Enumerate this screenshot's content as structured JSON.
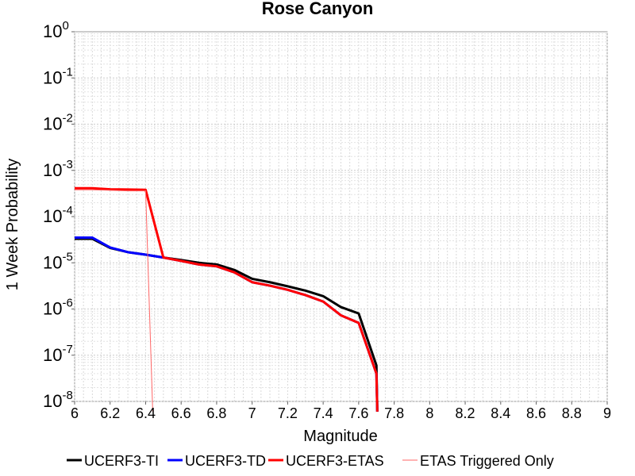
{
  "chart_data": {
    "type": "line",
    "title": "Rose Canyon",
    "xlabel": "Magnitude",
    "ylabel": "1 Week Probability",
    "xlim": [
      6,
      9
    ],
    "ylim": [
      1e-08,
      1
    ],
    "yscale": "log",
    "grid": true,
    "legend_position": "bottom",
    "x_ticks": [
      "6",
      "6.2",
      "6.4",
      "6.6",
      "6.8",
      "7",
      "7.2",
      "7.4",
      "7.6",
      "7.8",
      "8",
      "8.2",
      "8.4",
      "8.6",
      "8.8",
      "9"
    ],
    "y_ticks": [
      {
        "base": "10",
        "exp": "0"
      },
      {
        "base": "10",
        "exp": "-1"
      },
      {
        "base": "10",
        "exp": "-2"
      },
      {
        "base": "10",
        "exp": "-3"
      },
      {
        "base": "10",
        "exp": "-4"
      },
      {
        "base": "10",
        "exp": "-5"
      },
      {
        "base": "10",
        "exp": "-6"
      },
      {
        "base": "10",
        "exp": "-7"
      },
      {
        "base": "10",
        "exp": "-8"
      }
    ],
    "series": [
      {
        "name": "UCERF3-TI",
        "color": "#000000",
        "width": 3,
        "x": [
          6.0,
          6.1,
          6.2,
          6.3,
          6.4,
          6.5,
          6.6,
          6.7,
          6.8,
          6.9,
          7.0,
          7.1,
          7.2,
          7.3,
          7.4,
          7.5,
          7.6,
          7.7,
          7.705
        ],
        "y": [
          3.3e-05,
          3.3e-05,
          2.1e-05,
          1.7e-05,
          1.5e-05,
          1.3e-05,
          1.15e-05,
          1e-05,
          9.2e-06,
          7e-06,
          4.5e-06,
          3.8e-06,
          3.1e-06,
          2.5e-06,
          1.9e-06,
          1.1e-06,
          8e-07,
          6e-08,
          6e-09
        ]
      },
      {
        "name": "UCERF3-TD",
        "color": "#0000ff",
        "width": 3,
        "x": [
          6.0,
          6.1,
          6.2,
          6.3,
          6.4,
          6.5,
          6.6,
          6.7,
          6.8,
          6.9,
          7.0,
          7.1,
          7.2,
          7.3,
          7.4,
          7.5,
          7.6,
          7.7,
          7.705
        ],
        "y": [
          3.5e-05,
          3.5e-05,
          2.15e-05,
          1.7e-05,
          1.5e-05,
          1.3e-05,
          1.1e-05,
          9.2e-06,
          8.4e-06,
          6.2e-06,
          3.8e-06,
          3.2e-06,
          2.6e-06,
          2e-06,
          1.45e-06,
          7.3e-07,
          5e-07,
          4e-08,
          6e-09
        ]
      },
      {
        "name": "UCERF3-ETAS",
        "color": "#ff0000",
        "width": 3,
        "x": [
          6.0,
          6.1,
          6.2,
          6.3,
          6.4,
          6.5,
          6.6,
          6.7,
          6.8,
          6.9,
          7.0,
          7.1,
          7.2,
          7.3,
          7.4,
          7.5,
          7.6,
          7.7,
          7.705
        ],
        "y": [
          0.00041,
          0.00041,
          0.00039,
          0.000385,
          0.00038,
          1.3e-05,
          1.1e-05,
          9.2e-06,
          8.4e-06,
          6.2e-06,
          3.8e-06,
          3.2e-06,
          2.6e-06,
          2e-06,
          1.45e-06,
          7.3e-07,
          5e-07,
          4e-08,
          6e-09
        ]
      },
      {
        "name": "ETAS Triggered Only",
        "color": "#ff6666",
        "width": 1,
        "x": [
          6.0,
          6.1,
          6.2,
          6.3,
          6.4,
          6.44
        ],
        "y": [
          0.00038,
          0.00038,
          0.00037,
          0.00036,
          0.00036,
          6e-09
        ]
      }
    ]
  }
}
